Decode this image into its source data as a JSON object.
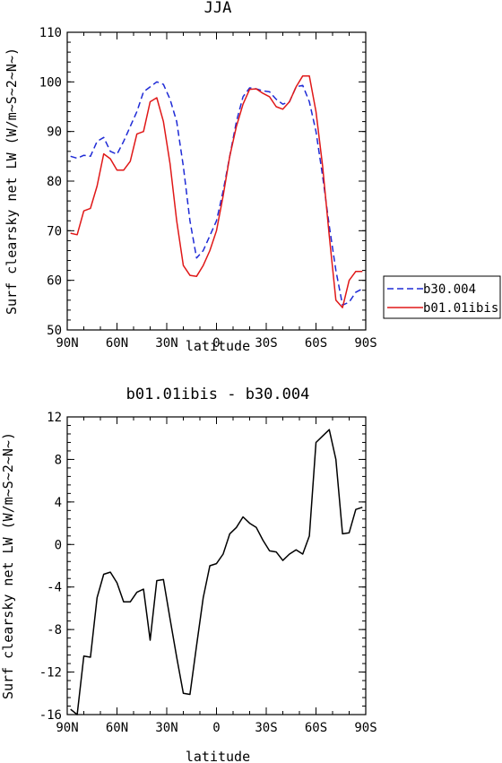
{
  "chart_data": [
    {
      "type": "line",
      "title": "JJA",
      "xlabel": "latitude",
      "ylabel": "Surf clearsky net LW (W/m~S~2~N~)",
      "x_ticks": [
        "90N",
        "60N",
        "30N",
        "0",
        "30S",
        "60S",
        "90S"
      ],
      "x_tick_values": [
        -90,
        -60,
        -30,
        0,
        30,
        60,
        90
      ],
      "xlim": [
        -90,
        90
      ],
      "ylim": [
        50,
        110
      ],
      "y_ticks": [
        50,
        60,
        70,
        80,
        90,
        100,
        110
      ],
      "legend_position": "right",
      "series": [
        {
          "name": "b30.004",
          "color": "#1f2bd6",
          "style": "dashed",
          "x": [
            -88,
            -84,
            -80,
            -76,
            -72,
            -68,
            -64,
            -60,
            -56,
            -52,
            -48,
            -44,
            -40,
            -36,
            -32,
            -28,
            -24,
            -20,
            -16,
            -12,
            -8,
            -4,
            0,
            4,
            8,
            12,
            16,
            20,
            24,
            28,
            32,
            36,
            40,
            44,
            48,
            52,
            56,
            60,
            64,
            68,
            72,
            76,
            80,
            84,
            88
          ],
          "y": [
            85.0,
            84.6,
            85.2,
            85.0,
            88.0,
            88.8,
            86.0,
            85.4,
            88.0,
            91.0,
            94.0,
            98.0,
            99.0,
            100.0,
            99.5,
            96.5,
            92.0,
            83.0,
            72.0,
            64.5,
            66.0,
            69.0,
            72.0,
            78.0,
            85.0,
            92.0,
            97.0,
            98.8,
            98.6,
            98.2,
            98.0,
            96.5,
            95.5,
            96.0,
            99.0,
            99.3,
            96.0,
            90.0,
            81.0,
            71.0,
            62.0,
            55.0,
            55.6,
            57.6,
            58.3
          ]
        },
        {
          "name": "b01.01ibis",
          "color": "#e01818",
          "style": "solid",
          "x": [
            -88,
            -84,
            -80,
            -76,
            -72,
            -68,
            -64,
            -60,
            -56,
            -52,
            -48,
            -44,
            -40,
            -36,
            -32,
            -28,
            -24,
            -20,
            -16,
            -12,
            -8,
            -4,
            0,
            4,
            8,
            12,
            16,
            20,
            24,
            28,
            32,
            36,
            40,
            44,
            48,
            52,
            56,
            60,
            64,
            68,
            72,
            76,
            80,
            84,
            88
          ],
          "y": [
            69.5,
            69.2,
            74.0,
            74.5,
            79.0,
            85.5,
            84.5,
            82.2,
            82.2,
            84.0,
            89.5,
            90.0,
            96.0,
            96.8,
            92.0,
            83.5,
            72.0,
            63.0,
            61.0,
            60.8,
            63.0,
            66.0,
            70.0,
            77.0,
            85.0,
            91.0,
            95.5,
            98.5,
            98.6,
            97.7,
            97.0,
            95.0,
            94.5,
            96.0,
            99.0,
            101.2,
            101.2,
            94.0,
            83.0,
            69.0,
            56.0,
            54.5,
            60.0,
            61.8,
            61.8
          ]
        }
      ]
    },
    {
      "type": "line",
      "title": "b01.01ibis - b30.004",
      "xlabel": "latitude",
      "ylabel": "Surf clearsky net LW (W/m~S~2~N~)",
      "x_ticks": [
        "90N",
        "60N",
        "30N",
        "0",
        "30S",
        "60S",
        "90S"
      ],
      "x_tick_values": [
        -90,
        -60,
        -30,
        0,
        30,
        60,
        90
      ],
      "xlim": [
        -90,
        90
      ],
      "ylim": [
        -16,
        12
      ],
      "y_ticks": [
        -16,
        -12,
        -8,
        -4,
        0,
        4,
        8,
        12
      ],
      "series": [
        {
          "color": "#000000",
          "style": "solid",
          "x": [
            -88,
            -84,
            -80,
            -76,
            -72,
            -68,
            -64,
            -60,
            -56,
            -52,
            -48,
            -44,
            -40,
            -36,
            -32,
            -28,
            -24,
            -20,
            -16,
            -12,
            -8,
            -4,
            0,
            4,
            8,
            12,
            16,
            20,
            24,
            28,
            32,
            36,
            40,
            44,
            48,
            52,
            56,
            60,
            64,
            68,
            72,
            76,
            80,
            84,
            88
          ],
          "y": [
            -15.5,
            -16.0,
            -10.5,
            -10.6,
            -5.0,
            -2.8,
            -2.6,
            -3.6,
            -5.4,
            -5.4,
            -4.5,
            -4.2,
            -9.0,
            -3.4,
            -3.3,
            -7.0,
            -10.6,
            -14.0,
            -14.1,
            -9.5,
            -5.0,
            -2.0,
            -1.8,
            -0.9,
            1.0,
            1.6,
            2.6,
            2.0,
            1.6,
            0.4,
            -0.6,
            -0.7,
            -1.5,
            -0.9,
            -0.5,
            -0.9,
            0.8,
            9.6,
            10.2,
            10.8,
            8.0,
            1.0,
            1.1,
            3.3,
            3.5
          ]
        }
      ]
    }
  ]
}
